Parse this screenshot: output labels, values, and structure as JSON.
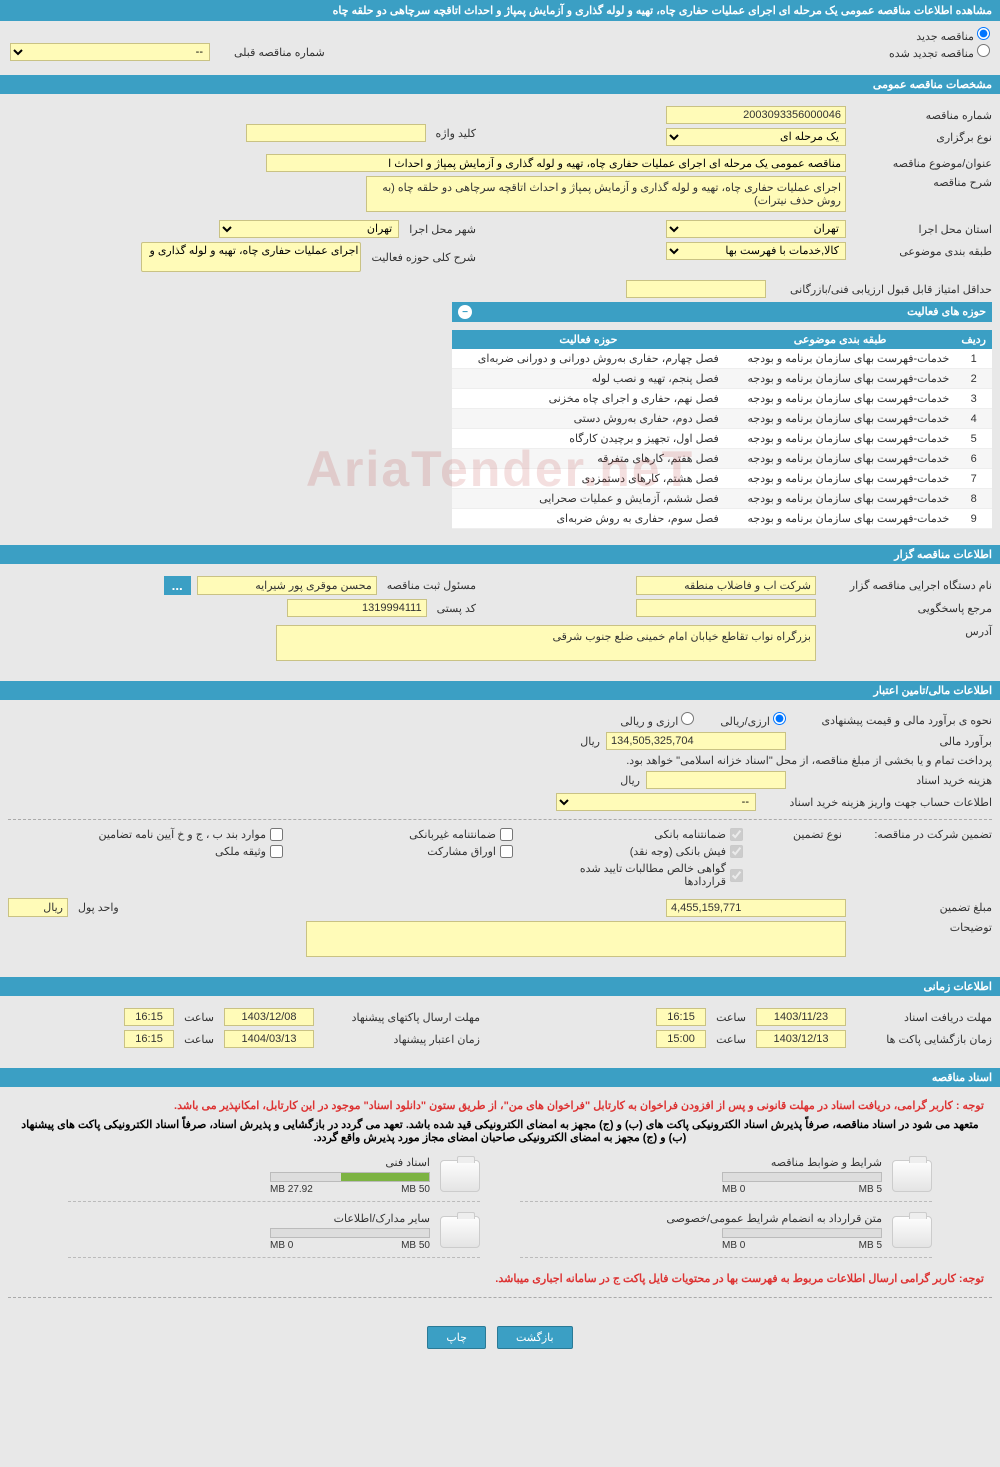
{
  "header": {
    "title": "مشاهده اطلاعات مناقصه عمومی یک مرحله ای اجرای عملیات حفاری چاه، تهیه و لوله گذاری و آزمایش پمپاژ و احداث اتاقچه سرچاهی دو حلقه چاه"
  },
  "radio": {
    "new_label": "مناقصه جدید",
    "renewed_label": "مناقصه تجدید شده",
    "prev_number_label": "شماره مناقصه قبلی",
    "prev_number_value": "--"
  },
  "general": {
    "section_title": "مشخصات مناقصه عمومی",
    "number_label": "شماره مناقصه",
    "number_value": "2003093356000046",
    "type_label": "نوع برگزاری",
    "type_value": "یک مرحله ای",
    "keyword_label": "کلید واژه",
    "keyword_value": "",
    "subject_label": "عنوان/موضوع مناقصه",
    "subject_value": "مناقصه عمومی یک مرحله ای اجرای عملیات حفاری چاه، تهیه و لوله گذاری و آزمایش پمپاژ و احداث ا",
    "desc_label": "شرح مناقصه",
    "desc_value": "اجرای عملیات حفاری چاه، تهیه و لوله گذاری و آزمایش پمپاژ و احداث اتاقچه سرچاهی دو حلقه چاه (به روش حذف نیترات)",
    "province_label": "استان محل اجرا",
    "province_value": "تهران",
    "city_label": "شهر محل اجرا",
    "city_value": "تهران",
    "category_label": "طبقه بندی موضوعی",
    "category_value": "کالا,خدمات با فهرست بها",
    "activity_scope_label": "شرح کلی حوزه فعالیت",
    "activity_scope_value": "اجرای عملیات حفاری چاه، تهیه و لوله گذاری و",
    "min_score_label": "حداقل امتیاز قابل قبول ارزیابی فنی/بازرگانی",
    "min_score_value": ""
  },
  "activity": {
    "header": "حوزه های فعالیت",
    "col_row": "ردیف",
    "col_category": "طبقه بندی موضوعی",
    "col_scope": "حوزه فعالیت",
    "rows": [
      {
        "n": "1",
        "cat": "خدمات-فهرست بهای سازمان برنامه و بودجه",
        "scope": "فصل چهارم، حفاری به‌روش دورانی و دورانی ضربه‌ای"
      },
      {
        "n": "2",
        "cat": "خدمات-فهرست بهای سازمان برنامه و بودجه",
        "scope": "فصل پنجم، تهیه و نصب لوله"
      },
      {
        "n": "3",
        "cat": "خدمات-فهرست بهای سازمان برنامه و بودجه",
        "scope": "فصل نهم، حفاری و اجرای چاه مخزنی"
      },
      {
        "n": "4",
        "cat": "خدمات-فهرست بهای سازمان برنامه و بودجه",
        "scope": "فصل دوم، حفاری به‌روش دستی"
      },
      {
        "n": "5",
        "cat": "خدمات-فهرست بهای سازمان برنامه و بودجه",
        "scope": "فصل اول، تجهیز و برچیدن کارگاه"
      },
      {
        "n": "6",
        "cat": "خدمات-فهرست بهای سازمان برنامه و بودجه",
        "scope": "فصل هفتم، کارهای متفرقه"
      },
      {
        "n": "7",
        "cat": "خدمات-فهرست بهای سازمان برنامه و بودجه",
        "scope": "فصل هشتم، کارهای دستمزدی"
      },
      {
        "n": "8",
        "cat": "خدمات-فهرست بهای سازمان برنامه و بودجه",
        "scope": "فصل ششم، آزمایش و عملیات صحرایی"
      },
      {
        "n": "9",
        "cat": "خدمات-فهرست بهای سازمان برنامه و بودجه",
        "scope": "فصل سوم، حفاری به روش ضربه‌ای"
      }
    ]
  },
  "organizer": {
    "section_title": "اطلاعات مناقصه گزار",
    "org_label": "نام دستگاه اجرایی مناقصه گزار",
    "org_value": "شرکت اب و فاضلاب منطقه",
    "registrar_label": "مسئول ثبت مناقصه",
    "registrar_value": "محسن موقری پور شیرایه",
    "responder_label": "مرجع پاسخگویی",
    "responder_value": "",
    "postal_label": "کد پستی",
    "postal_value": "1319994111",
    "address_label": "آدرس",
    "address_value": "بزرگراه نواب تقاطع خیابان امام خمینی ضلع جنوب شرقی"
  },
  "financial": {
    "section_title": "اطلاعات مالی/تامین اعتبار",
    "method_label": "نحوه ی برآورد مالی و قیمت پیشنهادی",
    "method_opt1": "ارزی/ریالی",
    "method_opt2": "ارزی و ریالی",
    "estimate_label": "برآورد مالی",
    "estimate_value": "134,505,325,704",
    "currency": "ریال",
    "payment_note": "پرداخت تمام و یا بخشی از مبلغ مناقصه، از محل \"اسناد خزانه اسلامی\" خواهد بود.",
    "doc_cost_label": "هزینه خرید اسناد",
    "doc_cost_value": "",
    "account_label": "اطلاعات حساب جهت واریز هزینه خرید اسناد",
    "account_value": "--"
  },
  "guarantee": {
    "label": "تضمین شرکت در مناقصه:",
    "type_label": "نوع تضمین",
    "opts": {
      "bank_guarantee": "ضمانتنامه بانکی",
      "nonbank_guarantee": "ضمانتنامه غیربانکی",
      "bylaw_items": "موارد بند ب ، ج و خ آیین نامه تضامین",
      "bank_receipt": "فیش بانکی (وجه نقد)",
      "participation_bonds": "اوراق مشارکت",
      "property_doc": "وثیقه ملکی",
      "net_claims": "گواهی خالص مطالبات تایید شده قراردادها"
    },
    "amount_label": "مبلغ تضمین",
    "amount_value": "4,455,159,771",
    "unit_label": "واحد پول",
    "unit_value": "ریال",
    "remarks_label": "توضیحات",
    "remarks_value": ""
  },
  "timing": {
    "section_title": "اطلاعات زمانی",
    "receive_deadline_label": "مهلت دریافت اسناد",
    "receive_deadline_date": "1403/11/23",
    "time_label": "ساعت",
    "receive_deadline_time": "16:15",
    "send_deadline_label": "مهلت ارسال پاکتهای پیشنهاد",
    "send_deadline_date": "1403/12/08",
    "send_deadline_time": "16:15",
    "opening_label": "زمان بازگشایی پاکت ها",
    "opening_date": "1403/12/13",
    "opening_time": "15:00",
    "validity_label": "زمان اعتبار پیشنهاد",
    "validity_date": "1404/03/13",
    "validity_time": "16:15"
  },
  "docs": {
    "section_title": "اسناد مناقصه",
    "notice1": "توجه : کاربر گرامی، دریافت اسناد در مهلت قانونی و پس از افزودن فراخوان به کارتابل \"فراخوان های من\"، از طریق ستون \"دانلود اسناد\" موجود در این کارتابل، امکانپذیر می باشد.",
    "notice2": "متعهد می شود در اسناد مناقصه، صرفاً پذیرش اسناد الکترونیکی پاکت های (ب) و (ج) مجهز به امضای الکترونیکی قید شده باشد. تعهد می گردد در بازگشایی و پذیرش اسناد، صرفاً اسناد الکترونیکی پاکت های پیشنهاد (ب) و (ج) مجهز به امضای الکترونیکی صاحبان امضای مجاز مورد پذیرش واقع گردد.",
    "notice3": "توجه: کاربر گرامی ارسال اطلاعات مربوط به فهرست بها در محتویات فایل پاکت ج در سامانه اجباری میباشد.",
    "items": [
      {
        "title": "شرایط و ضوابط مناقصه",
        "used": "0 MB",
        "total": "5 MB",
        "pct": 0
      },
      {
        "title": "اسناد فنی",
        "used": "27.92 MB",
        "total": "50 MB",
        "pct": 56
      },
      {
        "title": "متن قرارداد به انضمام شرایط عمومی/خصوصی",
        "used": "0 MB",
        "total": "5 MB",
        "pct": 0
      },
      {
        "title": "سایر مدارک/اطلاعات",
        "used": "0 MB",
        "total": "50 MB",
        "pct": 0
      }
    ]
  },
  "footer": {
    "back": "بازگشت",
    "print": "چاپ"
  },
  "watermark": "AriaTender.neT",
  "colors": {
    "header_bg": "#3b9fc4",
    "field_bg": "#fffbb8",
    "page_bg": "#e8e8e8"
  }
}
